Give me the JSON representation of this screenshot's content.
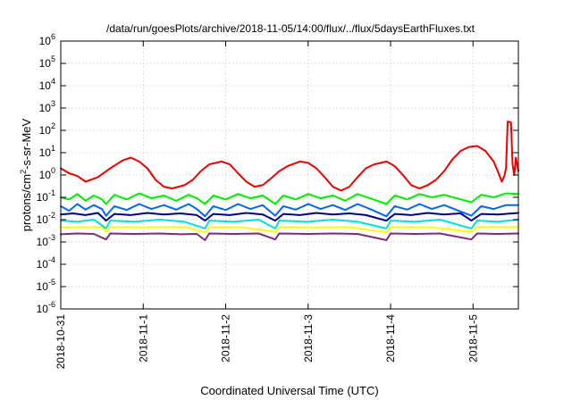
{
  "chart_data": {
    "type": "line",
    "title": "/data/run/goesPlots/archive/2018-11-05/14:00/flux/../flux/5daysEarthFluxes.txt",
    "xlabel": "Coordinated Universal Time (UTC)",
    "ylabel_parts": {
      "base": "protons/cm",
      "sup": "2",
      "rest": "-s-sr-MeV"
    },
    "y_scale": "log",
    "ylim": [
      1e-06,
      1000000.0
    ],
    "y_ticks": [
      {
        "exp": "-6"
      },
      {
        "exp": "-5"
      },
      {
        "exp": "-4"
      },
      {
        "exp": "-3"
      },
      {
        "exp": "-2"
      },
      {
        "exp": "-1"
      },
      {
        "exp": "0"
      },
      {
        "exp": "1"
      },
      {
        "exp": "2"
      },
      {
        "exp": "3"
      },
      {
        "exp": "4"
      },
      {
        "exp": "5"
      },
      {
        "exp": "6"
      }
    ],
    "xlim_days": [
      0,
      5.55
    ],
    "x_ticks": [
      {
        "day": 0,
        "label": "2018-10-31"
      },
      {
        "day": 1,
        "label": "2018-11-1"
      },
      {
        "day": 2,
        "label": "2018-11-2"
      },
      {
        "day": 3,
        "label": "2018-11-3"
      },
      {
        "day": 4,
        "label": "2018-11-4"
      },
      {
        "day": 5,
        "label": "2018-11-5"
      }
    ],
    "grid": true,
    "series": [
      {
        "color": "#7b2d7b",
        "points": [
          [
            0,
            0.0022
          ],
          [
            0.2,
            0.0024
          ],
          [
            0.4,
            0.0023
          ],
          [
            0.55,
            0.0013
          ],
          [
            0.6,
            0.0024
          ],
          [
            0.9,
            0.0023
          ],
          [
            1.2,
            0.0024
          ],
          [
            1.45,
            0.0022
          ],
          [
            1.65,
            0.0023
          ],
          [
            1.75,
            0.0012
          ],
          [
            1.8,
            0.0024
          ],
          [
            2.1,
            0.0023
          ],
          [
            2.4,
            0.0024
          ],
          [
            2.6,
            0.0013
          ],
          [
            2.65,
            0.0024
          ],
          [
            3.0,
            0.0023
          ],
          [
            3.3,
            0.0024
          ],
          [
            3.6,
            0.0023
          ],
          [
            3.95,
            0.0012
          ],
          [
            4.0,
            0.0024
          ],
          [
            4.3,
            0.0023
          ],
          [
            4.6,
            0.0024
          ],
          [
            4.98,
            0.0013
          ],
          [
            5.05,
            0.0024
          ],
          [
            5.3,
            0.0023
          ],
          [
            5.55,
            0.0024
          ]
        ]
      },
      {
        "color": "#ffff00",
        "points": [
          [
            0,
            0.0045
          ],
          [
            0.5,
            0.0046
          ],
          [
            0.55,
            0.0028
          ],
          [
            0.6,
            0.0046
          ],
          [
            1.0,
            0.0045
          ],
          [
            1.5,
            0.0047
          ],
          [
            1.75,
            0.0027
          ],
          [
            1.8,
            0.0046
          ],
          [
            2.2,
            0.0045
          ],
          [
            2.6,
            0.0028
          ],
          [
            2.65,
            0.0046
          ],
          [
            3.1,
            0.0045
          ],
          [
            3.5,
            0.0046
          ],
          [
            3.95,
            0.0027
          ],
          [
            4.0,
            0.0046
          ],
          [
            4.5,
            0.0045
          ],
          [
            4.98,
            0.0028
          ],
          [
            5.05,
            0.0046
          ],
          [
            5.55,
            0.0047
          ]
        ]
      },
      {
        "color": "#00e0e0",
        "points": [
          [
            0,
            0.009
          ],
          [
            0.2,
            0.008
          ],
          [
            0.4,
            0.01
          ],
          [
            0.55,
            0.004
          ],
          [
            0.6,
            0.009
          ],
          [
            0.9,
            0.008
          ],
          [
            1.2,
            0.01
          ],
          [
            1.5,
            0.008
          ],
          [
            1.75,
            0.004
          ],
          [
            1.8,
            0.009
          ],
          [
            2.1,
            0.008
          ],
          [
            2.4,
            0.01
          ],
          [
            2.6,
            0.004
          ],
          [
            2.65,
            0.009
          ],
          [
            3.0,
            0.008
          ],
          [
            3.3,
            0.01
          ],
          [
            3.6,
            0.008
          ],
          [
            3.95,
            0.004
          ],
          [
            4.0,
            0.009
          ],
          [
            4.3,
            0.008
          ],
          [
            4.6,
            0.01
          ],
          [
            4.98,
            0.004
          ],
          [
            5.05,
            0.009
          ],
          [
            5.3,
            0.008
          ],
          [
            5.55,
            0.01
          ]
        ]
      },
      {
        "color": "#000080",
        "points": [
          [
            0,
            0.017
          ],
          [
            0.15,
            0.019
          ],
          [
            0.3,
            0.016
          ],
          [
            0.45,
            0.02
          ],
          [
            0.55,
            0.009
          ],
          [
            0.65,
            0.018
          ],
          [
            0.85,
            0.016
          ],
          [
            1.05,
            0.02
          ],
          [
            1.25,
            0.017
          ],
          [
            1.45,
            0.019
          ],
          [
            1.65,
            0.016
          ],
          [
            1.75,
            0.009
          ],
          [
            1.85,
            0.018
          ],
          [
            2.05,
            0.016
          ],
          [
            2.25,
            0.02
          ],
          [
            2.45,
            0.017
          ],
          [
            2.6,
            0.009
          ],
          [
            2.7,
            0.018
          ],
          [
            2.9,
            0.016
          ],
          [
            3.1,
            0.02
          ],
          [
            3.3,
            0.017
          ],
          [
            3.5,
            0.019
          ],
          [
            3.7,
            0.016
          ],
          [
            3.95,
            0.009
          ],
          [
            4.05,
            0.018
          ],
          [
            4.25,
            0.016
          ],
          [
            4.45,
            0.02
          ],
          [
            4.65,
            0.017
          ],
          [
            4.85,
            0.019
          ],
          [
            4.98,
            0.009
          ],
          [
            5.1,
            0.018
          ],
          [
            5.3,
            0.017
          ],
          [
            5.55,
            0.02
          ]
        ]
      },
      {
        "color": "#0066ff",
        "points": [
          [
            0,
            0.04
          ],
          [
            0.1,
            0.025
          ],
          [
            0.2,
            0.05
          ],
          [
            0.3,
            0.028
          ],
          [
            0.4,
            0.045
          ],
          [
            0.5,
            0.03
          ],
          [
            0.55,
            0.015
          ],
          [
            0.65,
            0.04
          ],
          [
            0.8,
            0.027
          ],
          [
            0.95,
            0.05
          ],
          [
            1.1,
            0.03
          ],
          [
            1.25,
            0.045
          ],
          [
            1.4,
            0.028
          ],
          [
            1.55,
            0.05
          ],
          [
            1.65,
            0.03
          ],
          [
            1.75,
            0.014
          ],
          [
            1.85,
            0.04
          ],
          [
            2.0,
            0.027
          ],
          [
            2.15,
            0.05
          ],
          [
            2.3,
            0.03
          ],
          [
            2.45,
            0.045
          ],
          [
            2.6,
            0.015
          ],
          [
            2.7,
            0.04
          ],
          [
            2.85,
            0.028
          ],
          [
            3.0,
            0.05
          ],
          [
            3.15,
            0.03
          ],
          [
            3.3,
            0.045
          ],
          [
            3.45,
            0.027
          ],
          [
            3.6,
            0.05
          ],
          [
            3.75,
            0.03
          ],
          [
            3.95,
            0.014
          ],
          [
            4.05,
            0.04
          ],
          [
            4.2,
            0.028
          ],
          [
            4.35,
            0.05
          ],
          [
            4.5,
            0.03
          ],
          [
            4.65,
            0.045
          ],
          [
            4.8,
            0.027
          ],
          [
            4.98,
            0.015
          ],
          [
            5.1,
            0.04
          ],
          [
            5.25,
            0.03
          ],
          [
            5.4,
            0.045
          ],
          [
            5.55,
            0.045
          ]
        ]
      },
      {
        "color": "#00ee00",
        "points": [
          [
            0,
            0.1
          ],
          [
            0.1,
            0.08
          ],
          [
            0.2,
            0.14
          ],
          [
            0.3,
            0.07
          ],
          [
            0.4,
            0.12
          ],
          [
            0.5,
            0.08
          ],
          [
            0.55,
            0.05
          ],
          [
            0.65,
            0.13
          ],
          [
            0.8,
            0.08
          ],
          [
            0.95,
            0.15
          ],
          [
            1.1,
            0.09
          ],
          [
            1.25,
            0.12
          ],
          [
            1.4,
            0.07
          ],
          [
            1.55,
            0.13
          ],
          [
            1.65,
            0.09
          ],
          [
            1.75,
            0.05
          ],
          [
            1.85,
            0.12
          ],
          [
            2.0,
            0.08
          ],
          [
            2.15,
            0.14
          ],
          [
            2.3,
            0.09
          ],
          [
            2.45,
            0.12
          ],
          [
            2.6,
            0.05
          ],
          [
            2.7,
            0.12
          ],
          [
            2.85,
            0.08
          ],
          [
            3.0,
            0.14
          ],
          [
            3.15,
            0.09
          ],
          [
            3.3,
            0.12
          ],
          [
            3.45,
            0.07
          ],
          [
            3.6,
            0.14
          ],
          [
            3.75,
            0.09
          ],
          [
            3.95,
            0.05
          ],
          [
            4.05,
            0.12
          ],
          [
            4.2,
            0.08
          ],
          [
            4.35,
            0.14
          ],
          [
            4.5,
            0.1
          ],
          [
            4.65,
            0.13
          ],
          [
            4.8,
            0.09
          ],
          [
            4.98,
            0.06
          ],
          [
            5.1,
            0.13
          ],
          [
            5.25,
            0.1
          ],
          [
            5.4,
            0.15
          ],
          [
            5.55,
            0.14
          ]
        ]
      },
      {
        "color": "#ee0000",
        "points": [
          [
            0,
            2.0
          ],
          [
            0.1,
            1.2
          ],
          [
            0.2,
            0.9
          ],
          [
            0.3,
            0.5
          ],
          [
            0.45,
            0.8
          ],
          [
            0.6,
            2.0
          ],
          [
            0.75,
            4.5
          ],
          [
            0.85,
            6.0
          ],
          [
            0.95,
            4.0
          ],
          [
            1.05,
            2.0
          ],
          [
            1.15,
            0.6
          ],
          [
            1.25,
            0.3
          ],
          [
            1.35,
            0.25
          ],
          [
            1.5,
            0.35
          ],
          [
            1.6,
            0.6
          ],
          [
            1.7,
            1.5
          ],
          [
            1.8,
            3.0
          ],
          [
            1.95,
            4.0
          ],
          [
            2.05,
            3.0
          ],
          [
            2.15,
            1.2
          ],
          [
            2.25,
            0.5
          ],
          [
            2.35,
            0.3
          ],
          [
            2.45,
            0.35
          ],
          [
            2.55,
            0.7
          ],
          [
            2.65,
            1.5
          ],
          [
            2.75,
            2.5
          ],
          [
            2.9,
            4.0
          ],
          [
            3.0,
            3.5
          ],
          [
            3.1,
            2.0
          ],
          [
            3.2,
            0.8
          ],
          [
            3.3,
            0.3
          ],
          [
            3.4,
            0.2
          ],
          [
            3.5,
            0.3
          ],
          [
            3.6,
            0.8
          ],
          [
            3.7,
            2.0
          ],
          [
            3.8,
            3.0
          ],
          [
            3.95,
            4.0
          ],
          [
            4.05,
            2.5
          ],
          [
            4.15,
            1.0
          ],
          [
            4.25,
            0.35
          ],
          [
            4.35,
            0.25
          ],
          [
            4.45,
            0.35
          ],
          [
            4.55,
            0.6
          ],
          [
            4.65,
            1.5
          ],
          [
            4.75,
            5.0
          ],
          [
            4.85,
            12
          ],
          [
            4.95,
            18
          ],
          [
            5.05,
            20
          ],
          [
            5.15,
            12
          ],
          [
            5.25,
            4.0
          ],
          [
            5.3,
            1.5
          ],
          [
            5.35,
            0.5
          ],
          [
            5.38,
            0.9
          ],
          [
            5.4,
            2.0
          ],
          [
            5.42,
            250
          ],
          [
            5.46,
            230
          ],
          [
            5.48,
            3.0
          ],
          [
            5.5,
            1.0
          ],
          [
            5.52,
            6.0
          ],
          [
            5.55,
            1.5
          ]
        ]
      }
    ]
  }
}
